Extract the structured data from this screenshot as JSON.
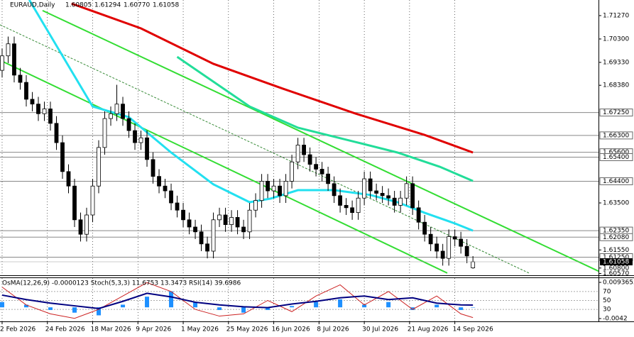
{
  "chart_data": {
    "type": "candlestick",
    "title": "EURAUD,Daily",
    "header_values": [
      "1.60805",
      "1.61294",
      "1.60770",
      "1.61058"
    ],
    "x": [
      0,
      2,
      4,
      6,
      8,
      10,
      12,
      14,
      16,
      18,
      20,
      22,
      24,
      26,
      28,
      30,
      32,
      34,
      36,
      38,
      40,
      42,
      44,
      46,
      48,
      50,
      52,
      54,
      56,
      58,
      60,
      62,
      64,
      66,
      68,
      70,
      72,
      74,
      76,
      78,
      80,
      82,
      84,
      86,
      88,
      90,
      92,
      94,
      96,
      98,
      100,
      102,
      104,
      106,
      108,
      110,
      112,
      114,
      116,
      118,
      120,
      122,
      124,
      126,
      128,
      130,
      132,
      134,
      136,
      138,
      140,
      142,
      144,
      146,
      148,
      150,
      152,
      154,
      156
    ],
    "open": [
      1.69,
      1.696,
      1.701,
      1.688,
      1.685,
      1.678,
      1.676,
      1.672,
      1.674,
      1.668,
      1.66,
      1.648,
      1.642,
      1.628,
      1.622,
      1.63,
      1.642,
      1.658,
      1.67,
      1.672,
      1.676,
      1.67,
      1.665,
      1.66,
      1.662,
      1.653,
      1.646,
      1.642,
      1.64,
      1.635,
      1.632,
      1.628,
      1.625,
      1.623,
      1.618,
      1.615,
      1.628,
      1.63,
      1.626,
      1.629,
      1.625,
      1.623,
      1.632,
      1.636,
      1.644,
      1.64,
      1.642,
      1.638,
      1.644,
      1.652,
      1.659,
      1.655,
      1.651,
      1.649,
      1.647,
      1.643,
      1.638,
      1.634,
      1.633,
      1.631,
      1.637,
      1.645,
      1.64,
      1.639,
      1.638,
      1.637,
      1.634,
      1.637,
      1.643,
      1.633,
      1.627,
      1.622,
      1.618,
      1.615,
      1.612,
      1.621,
      1.62,
      1.617,
      1.60805
    ],
    "high": [
      1.699,
      1.704,
      1.704,
      1.691,
      1.688,
      1.681,
      1.679,
      1.677,
      1.677,
      1.671,
      1.663,
      1.651,
      1.645,
      1.631,
      1.633,
      1.645,
      1.661,
      1.673,
      1.675,
      1.684,
      1.679,
      1.673,
      1.668,
      1.665,
      1.665,
      1.656,
      1.649,
      1.645,
      1.643,
      1.638,
      1.635,
      1.631,
      1.628,
      1.626,
      1.621,
      1.631,
      1.633,
      1.633,
      1.632,
      1.632,
      1.628,
      1.635,
      1.639,
      1.647,
      1.647,
      1.645,
      1.645,
      1.647,
      1.655,
      1.662,
      1.662,
      1.658,
      1.654,
      1.652,
      1.65,
      1.646,
      1.641,
      1.637,
      1.636,
      1.64,
      1.648,
      1.648,
      1.643,
      1.642,
      1.641,
      1.64,
      1.64,
      1.646,
      1.646,
      1.636,
      1.63,
      1.625,
      1.621,
      1.618,
      1.624,
      1.624,
      1.623,
      1.62,
      1.61294
    ],
    "low": [
      1.687,
      1.693,
      1.685,
      1.682,
      1.675,
      1.673,
      1.669,
      1.669,
      1.665,
      1.657,
      1.645,
      1.639,
      1.625,
      1.619,
      1.619,
      1.627,
      1.639,
      1.655,
      1.667,
      1.669,
      1.667,
      1.662,
      1.657,
      1.657,
      1.65,
      1.643,
      1.639,
      1.637,
      1.632,
      1.629,
      1.625,
      1.622,
      1.62,
      1.615,
      1.612,
      1.612,
      1.625,
      1.623,
      1.623,
      1.622,
      1.62,
      1.62,
      1.629,
      1.633,
      1.637,
      1.637,
      1.635,
      1.635,
      1.641,
      1.649,
      1.652,
      1.648,
      1.646,
      1.644,
      1.64,
      1.635,
      1.631,
      1.63,
      1.628,
      1.628,
      1.634,
      1.637,
      1.636,
      1.635,
      1.634,
      1.631,
      1.631,
      1.634,
      1.63,
      1.624,
      1.619,
      1.615,
      1.612,
      1.609,
      1.609,
      1.617,
      1.614,
      1.61,
      1.6077
    ],
    "close": [
      1.696,
      1.701,
      1.688,
      1.685,
      1.678,
      1.676,
      1.672,
      1.674,
      1.668,
      1.66,
      1.648,
      1.642,
      1.628,
      1.622,
      1.63,
      1.642,
      1.658,
      1.67,
      1.672,
      1.676,
      1.67,
      1.665,
      1.66,
      1.662,
      1.653,
      1.646,
      1.642,
      1.64,
      1.635,
      1.632,
      1.628,
      1.625,
      1.623,
      1.618,
      1.615,
      1.628,
      1.63,
      1.626,
      1.629,
      1.625,
      1.623,
      1.632,
      1.636,
      1.644,
      1.64,
      1.642,
      1.638,
      1.644,
      1.652,
      1.659,
      1.655,
      1.651,
      1.649,
      1.647,
      1.643,
      1.638,
      1.634,
      1.633,
      1.631,
      1.637,
      1.645,
      1.64,
      1.639,
      1.638,
      1.637,
      1.634,
      1.637,
      1.643,
      1.633,
      1.627,
      1.622,
      1.618,
      1.615,
      1.612,
      1.621,
      1.62,
      1.617,
      1.613,
      1.61058
    ],
    "up_color": "#ffffff",
    "down_color": "#000000",
    "xlim": [
      -0.7,
      197.6
    ],
    "ylim": [
      1.60499,
      1.71917
    ],
    "xticks": [
      {
        "value": 0,
        "label": "2 Feb 2026"
      },
      {
        "value": 15,
        "label": "24 Feb 2026"
      },
      {
        "value": 30,
        "label": "18 Mar 2026"
      },
      {
        "value": 45,
        "label": "9 Apr 2026"
      },
      {
        "value": 60,
        "label": "1 May 2026"
      },
      {
        "value": 75,
        "label": "25 May 2026"
      },
      {
        "value": 90,
        "label": "16 Jun 2026"
      },
      {
        "value": 105,
        "label": "8 Jul 2026"
      },
      {
        "value": 120,
        "label": "30 Jul 2026"
      },
      {
        "value": 135,
        "label": "21 Aug 2026"
      },
      {
        "value": 150,
        "label": "14 Sep 2026"
      }
    ],
    "yticks": [
      {
        "value": 1.7127,
        "label": "1.71270"
      },
      {
        "value": 1.703,
        "label": "1.70300"
      },
      {
        "value": 1.6933,
        "label": "1.69330"
      },
      {
        "value": 1.6838,
        "label": "1.68380"
      },
      {
        "value": 1.635,
        "label": "1.63500"
      },
      {
        "value": 1.6155,
        "label": "1.61550"
      },
      {
        "value": 1.608,
        "label": "1.60800"
      },
      {
        "value": 1.6057,
        "label": "1.60570"
      }
    ],
    "levels": [
      {
        "value": 1.6725,
        "label": "1.67250"
      },
      {
        "value": 1.663,
        "label": "1.66300"
      },
      {
        "value": 1.656,
        "label": "1.65600"
      },
      {
        "value": 1.654,
        "label": "1.65400"
      },
      {
        "value": 1.644,
        "label": "1.64400"
      },
      {
        "value": 1.6235,
        "label": "1.62350"
      },
      {
        "value": 1.6208,
        "label": "1.62080"
      },
      {
        "value": 1.6125,
        "label": "1.61250"
      }
    ],
    "last_price": {
      "value": 1.61058,
      "label": "1.61058"
    },
    "moving_averages": [
      {
        "color": "#e00000",
        "x": [
          23,
          46,
          70,
          93,
          117,
          140,
          156
        ],
        "values": [
          1.7177,
          1.7074,
          1.6927,
          1.6824,
          1.6721,
          1.6632,
          1.6559
        ]
      },
      {
        "color": "#22dd99",
        "x": [
          58,
          82,
          98,
          117,
          131,
          145,
          156
        ],
        "values": [
          1.6956,
          1.675,
          1.6662,
          1.6603,
          1.6559,
          1.65,
          1.6441
        ]
      },
      {
        "color": "#22e0f0",
        "x": [
          9,
          23,
          30,
          42,
          56,
          70,
          82,
          89,
          98,
          110,
          122,
          131,
          140,
          150,
          156
        ],
        "values": [
          1.7192,
          1.6897,
          1.675,
          1.6706,
          1.6559,
          1.6427,
          1.6353,
          1.6368,
          1.6403,
          1.6403,
          1.6383,
          1.6353,
          1.6309,
          1.6265,
          1.6235
        ]
      }
    ],
    "trendlines": [
      {
        "color": "#33dd33",
        "x": [
          -0.7,
          147.5
        ],
        "values": [
          1.6942,
          1.6059
        ]
      },
      {
        "color": "#338833",
        "x": [
          -0.7,
          174.6
        ],
        "values": [
          1.7089,
          1.6059
        ]
      },
      {
        "color": "#33dd33",
        "x": [
          13.4,
          197.6
        ],
        "values": [
          1.7148,
          1.6067
        ]
      }
    ],
    "indicator": {
      "label": "OsMA(12,26,9) -0.0000123  Stoch(5,3,3) 11.6753 13.3473  RSI(14) 39.6986",
      "x": [
        0,
        8,
        16,
        24,
        32,
        40,
        48,
        56,
        64,
        72,
        80,
        88,
        96,
        104,
        112,
        120,
        128,
        136,
        144,
        152,
        156
      ],
      "osma": [
        0.002,
        0.001,
        -0.001,
        -0.002,
        -0.003,
        0.001,
        0.004,
        0.006,
        0.002,
        -0.001,
        -0.002,
        -0.001,
        0.0005,
        0.002,
        0.003,
        0.001,
        0.002,
        -0.001,
        0.001,
        -0.001,
        -1.23e-05
      ],
      "stoch": [
        80,
        40,
        20,
        10,
        30,
        60,
        90,
        70,
        30,
        15,
        20,
        50,
        25,
        60,
        85,
        40,
        70,
        30,
        60,
        20,
        11.6753
      ],
      "rsi": [
        62,
        52,
        44,
        38,
        32,
        48,
        66,
        58,
        46,
        40,
        36,
        34,
        42,
        48,
        56,
        60,
        52,
        56,
        44,
        40,
        39.6986
      ],
      "ylim": [
        0,
        100
      ],
      "yticks": [
        70,
        50,
        30
      ],
      "osma_ylim": [
        -0.0058,
        0.01096
      ],
      "osma_ticks": [
        0.0093655,
        -0.0042
      ],
      "osma_color": "#1e90ff",
      "stoch_color": "#cc2222",
      "rsi_color": "#000080"
    }
  }
}
